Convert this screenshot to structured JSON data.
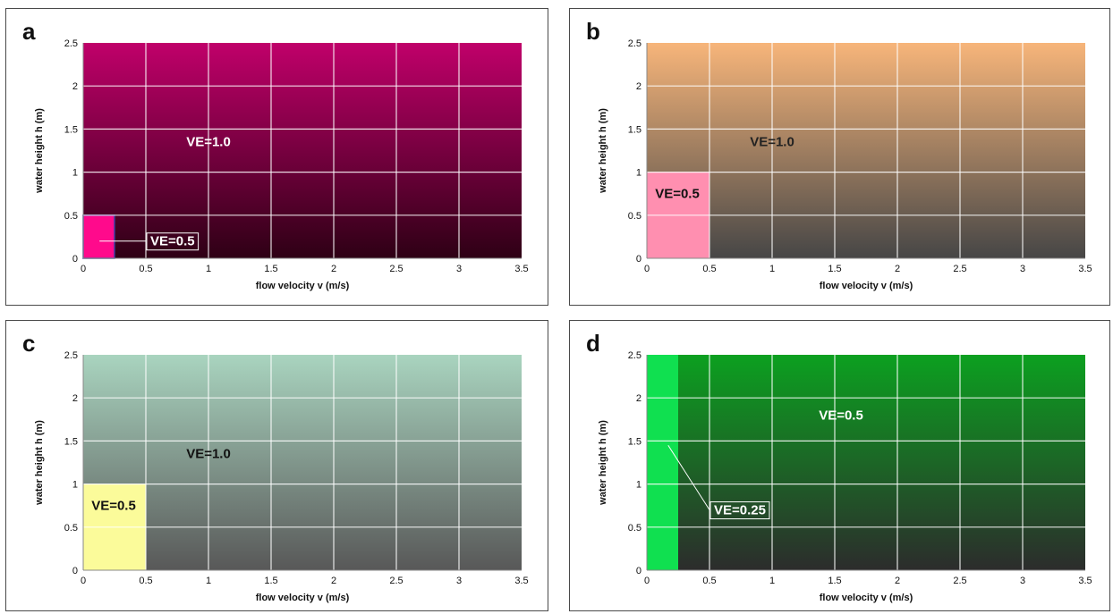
{
  "chart_data": [
    {
      "type": "heatmap",
      "panel_label": "a",
      "xlabel": "flow velocity v (m/s)",
      "ylabel": "water height h (m)",
      "xlim": [
        0,
        3.5
      ],
      "ylim": [
        0,
        2.5
      ],
      "xticks": [
        "0",
        "0.5",
        "1",
        "1.5",
        "2",
        "2.5",
        "3",
        "3.5"
      ],
      "yticks": [
        "0",
        "0.5",
        "1",
        "1.5",
        "2",
        "2.5"
      ],
      "x_gridlines": [
        0.5,
        1.0,
        1.5,
        2.0,
        2.5,
        3.0
      ],
      "y_gridlines": [
        0.5,
        1.0,
        1.5,
        2.0
      ],
      "grid": true,
      "background": {
        "label": "VE=1.0",
        "label_at": [
          1.0,
          1.3
        ],
        "label_color": "#ffffff",
        "color_top": "#c0006a",
        "color_bottom": "#2e0015"
      },
      "region": {
        "label": "VE=0.5",
        "v_range": [
          0,
          0.25
        ],
        "h_range": [
          0,
          0.5
        ],
        "color": "#ff0a8c",
        "outline": "#3a3aa0"
      },
      "region_label": {
        "at": [
          0.5,
          0.2
        ],
        "color": "#ffffff",
        "boxed": true,
        "leader_from": [
          0.13,
          0.2
        ]
      }
    },
    {
      "type": "heatmap",
      "panel_label": "b",
      "xlabel": "flow velocity v (m/s)",
      "ylabel": "water height h (m)",
      "xlim": [
        0,
        3.5
      ],
      "ylim": [
        0,
        2.5
      ],
      "xticks": [
        "0",
        "0.5",
        "1",
        "1.5",
        "2",
        "2.5",
        "3",
        "3.5"
      ],
      "yticks": [
        "0",
        "0.5",
        "1",
        "1.5",
        "2",
        "2.5"
      ],
      "x_gridlines": [
        0.5,
        1.0,
        1.5,
        2.0,
        2.5,
        3.0
      ],
      "y_gridlines": [
        0.5,
        1.0,
        1.5,
        2.0
      ],
      "grid": true,
      "background": {
        "label": "VE=1.0",
        "label_at": [
          1.0,
          1.3
        ],
        "label_color": "#222222",
        "color_top": "#f7b57a",
        "color_bottom": "#464646"
      },
      "region": {
        "label": "VE=0.5",
        "v_range": [
          0,
          0.5
        ],
        "h_range": [
          0,
          1.0
        ],
        "color": "#ff8fb0",
        "outline": ""
      },
      "region_label": {
        "at": [
          0.03,
          0.75
        ],
        "color": "#111111",
        "boxed": false
      }
    },
    {
      "type": "heatmap",
      "panel_label": "c",
      "xlabel": "flow velocity v (m/s)",
      "ylabel": "water height h (m)",
      "xlim": [
        0,
        3.5
      ],
      "ylim": [
        0,
        2.5
      ],
      "xticks": [
        "0",
        "0.5",
        "1",
        "1.5",
        "2",
        "2.5",
        "3",
        "3.5"
      ],
      "yticks": [
        "0",
        "0.5",
        "1",
        "1.5",
        "2",
        "2.5"
      ],
      "x_gridlines": [
        0.5,
        1.0,
        1.5,
        2.0,
        2.5,
        3.0
      ],
      "y_gridlines": [
        0.5,
        1.0,
        1.5,
        2.0
      ],
      "grid": true,
      "background": {
        "label": "VE=1.0",
        "label_at": [
          1.0,
          1.3
        ],
        "label_color": "#111111",
        "color_top": "#a9d4bf",
        "color_bottom": "#585858"
      },
      "region": {
        "label": "VE=0.5",
        "v_range": [
          0,
          0.5
        ],
        "h_range": [
          0,
          1.0
        ],
        "color": "#fbfb9a",
        "outline": ""
      },
      "region_label": {
        "at": [
          0.03,
          0.75
        ],
        "color": "#111111",
        "boxed": false
      }
    },
    {
      "type": "heatmap",
      "panel_label": "d",
      "xlabel": "flow velocity v (m/s)",
      "ylabel": "water height h (m)",
      "xlim": [
        0,
        3.5
      ],
      "ylim": [
        0,
        2.5
      ],
      "xticks": [
        "0",
        "0.5",
        "1",
        "1.5",
        "2",
        "2.5",
        "3",
        "3.5"
      ],
      "yticks": [
        "0",
        "0.5",
        "1",
        "1.5",
        "2",
        "2.5"
      ],
      "x_gridlines": [
        0.5,
        1.0,
        1.5,
        2.0,
        2.5,
        3.0
      ],
      "y_gridlines": [
        0.5,
        1.0,
        1.5,
        2.0
      ],
      "grid": true,
      "background": {
        "label": "VE=0.5",
        "label_at": [
          1.55,
          1.75
        ],
        "label_color": "#ffffff",
        "color_top": "#0ca020",
        "color_bottom": "#2c2c2c"
      },
      "region": {
        "label": "VE=0.25",
        "v_range": [
          0,
          0.25
        ],
        "h_range": [
          0,
          2.5
        ],
        "color": "#10e050",
        "outline": ""
      },
      "region_label": {
        "at": [
          0.5,
          0.7
        ],
        "color": "#ffffff",
        "boxed": true,
        "leader_from": [
          0.17,
          1.45
        ]
      }
    }
  ]
}
